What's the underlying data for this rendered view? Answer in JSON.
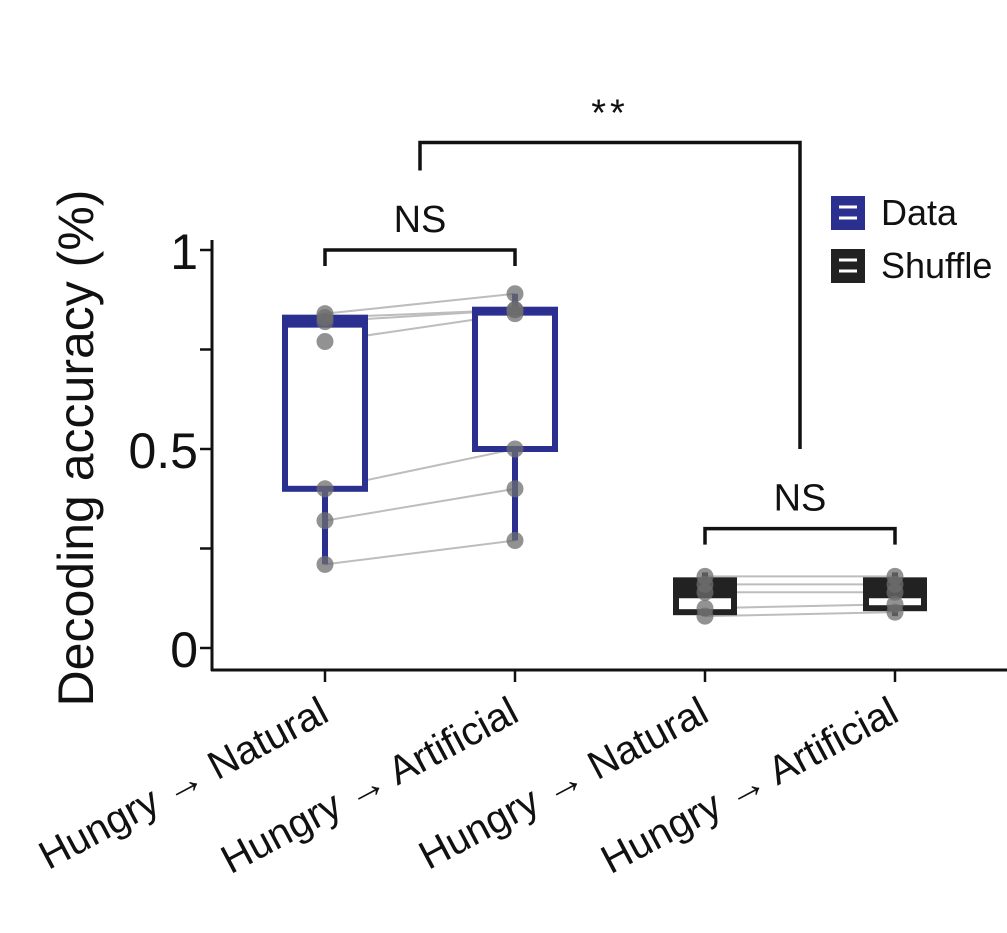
{
  "chart_data": {
    "type": "box",
    "ylabel": "Decoding accuracy (%)",
    "ylim": [
      0,
      1
    ],
    "yticks": [
      {
        "value": 0,
        "label": "0"
      },
      {
        "value": 0.25,
        "label": ""
      },
      {
        "value": 0.5,
        "label": "0.5"
      },
      {
        "value": 0.75,
        "label": ""
      },
      {
        "value": 1,
        "label": "1"
      }
    ],
    "categories": [
      "Hungry → Natural",
      "Hungry → Artificial",
      "Hungry → Natural",
      "Hungry → Artificial"
    ],
    "groups": [
      {
        "group": "Data",
        "color": "#2b2f8f",
        "boxes": [
          {
            "category_index": 0,
            "q1": 0.4,
            "median": 0.81,
            "q3": 0.83,
            "whisker_low": 0.21,
            "whisker_high": 0.84
          },
          {
            "category_index": 1,
            "q1": 0.5,
            "median": 0.84,
            "q3": 0.85,
            "whisker_low": 0.27,
            "whisker_high": 0.89
          }
        ],
        "points": [
          [
            0.21,
            0.27
          ],
          [
            0.32,
            0.4
          ],
          [
            0.4,
            0.5
          ],
          [
            0.77,
            0.84
          ],
          [
            0.82,
            0.85
          ],
          [
            0.83,
            0.85
          ],
          [
            0.84,
            0.89
          ]
        ]
      },
      {
        "group": "Shuffle",
        "color": "#222222",
        "boxes": [
          {
            "category_index": 2,
            "q1": 0.09,
            "median": 0.13,
            "q3": 0.17,
            "whisker_low": 0.08,
            "whisker_high": 0.19
          },
          {
            "category_index": 3,
            "q1": 0.1,
            "median": 0.13,
            "q3": 0.17,
            "whisker_low": 0.08,
            "whisker_high": 0.19
          }
        ],
        "points": [
          [
            0.08,
            0.09
          ],
          [
            0.1,
            0.11
          ],
          [
            0.14,
            0.14
          ],
          [
            0.16,
            0.16
          ],
          [
            0.18,
            0.18
          ]
        ]
      }
    ],
    "legend": {
      "position": "top-right",
      "entries": [
        {
          "label": "Data",
          "color": "#2b2f8f"
        },
        {
          "label": "Shuffle",
          "color": "#222222"
        }
      ]
    },
    "annotations": [
      {
        "label": "NS",
        "from_category": 0,
        "to_category": 1,
        "level": 1.0
      },
      {
        "label": "NS",
        "from_category": 2,
        "to_category": 3,
        "level": 0.3
      },
      {
        "label": "**",
        "from_category": 0.5,
        "to_category": 2.5,
        "level": 1.27,
        "right_leg_to": 0.5
      }
    ],
    "grid": false
  }
}
